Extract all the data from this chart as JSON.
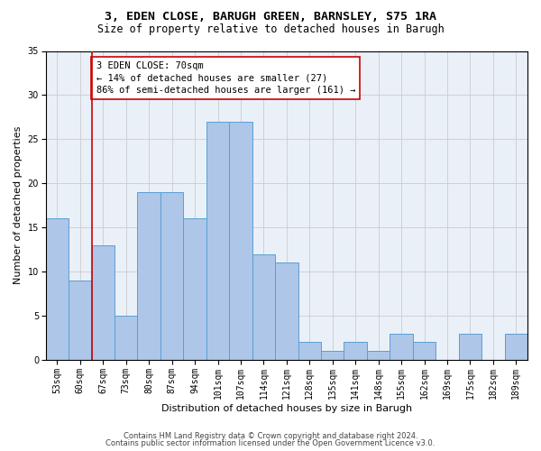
{
  "title1": "3, EDEN CLOSE, BARUGH GREEN, BARNSLEY, S75 1RA",
  "title2": "Size of property relative to detached houses in Barugh",
  "xlabel": "Distribution of detached houses by size in Barugh",
  "ylabel": "Number of detached properties",
  "categories": [
    "53sqm",
    "60sqm",
    "67sqm",
    "73sqm",
    "80sqm",
    "87sqm",
    "94sqm",
    "101sqm",
    "107sqm",
    "114sqm",
    "121sqm",
    "128sqm",
    "135sqm",
    "141sqm",
    "148sqm",
    "155sqm",
    "162sqm",
    "169sqm",
    "175sqm",
    "182sqm",
    "189sqm"
  ],
  "values": [
    16,
    9,
    13,
    5,
    19,
    19,
    16,
    27,
    27,
    12,
    11,
    2,
    1,
    2,
    1,
    3,
    2,
    0,
    3,
    0,
    3
  ],
  "bar_color": "#aec6e8",
  "bar_edge_color": "#5a9fd4",
  "vline_color": "#cc0000",
  "annotation_line1": "3 EDEN CLOSE: 70sqm",
  "annotation_line2": "← 14% of detached houses are smaller (27)",
  "annotation_line3": "86% of semi-detached houses are larger (161) →",
  "annotation_box_color": "#ffffff",
  "annotation_box_edge_color": "#cc0000",
  "ylim": [
    0,
    35
  ],
  "yticks": [
    0,
    5,
    10,
    15,
    20,
    25,
    30,
    35
  ],
  "grid_color": "#cccccc",
  "bg_color": "#eaf0f8",
  "footnote1": "Contains HM Land Registry data © Crown copyright and database right 2024.",
  "footnote2": "Contains public sector information licensed under the Open Government Licence v3.0.",
  "title_fontsize": 9.5,
  "subtitle_fontsize": 8.5,
  "xlabel_fontsize": 8,
  "ylabel_fontsize": 8,
  "tick_fontsize": 7,
  "annot_fontsize": 7.5,
  "footnote_fontsize": 6
}
